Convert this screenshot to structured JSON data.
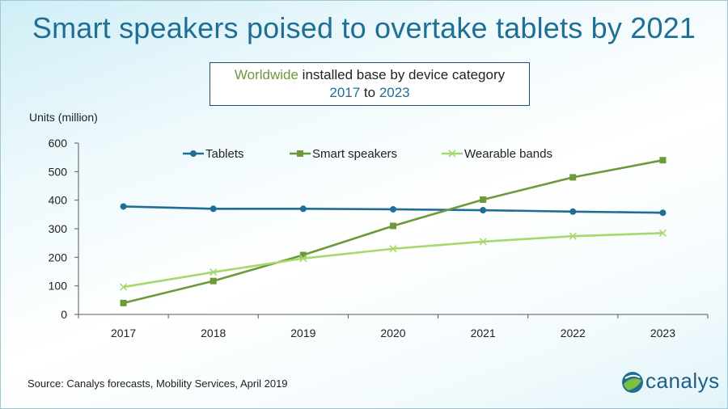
{
  "slide": {
    "title": "Smart speakers poised to overtake tablets by 2021",
    "subtitle_part1": "Worldwide",
    "subtitle_part2": " installed base by device category",
    "subtitle_year_start": "2017",
    "subtitle_to": " to ",
    "subtitle_year_end": "2023",
    "source": "Source:  Canalys forecasts, Mobility Services, April 2019",
    "logo_text": "canalys"
  },
  "colors": {
    "tablets": "#1f6f94",
    "smart_speakers": "#6b9a3b",
    "wearable_bands": "#a6d86e",
    "axis": "#595959"
  },
  "chart_data": {
    "type": "line",
    "title": "",
    "xlabel": "",
    "ylabel": "Units (million)",
    "categories": [
      "2017",
      "2018",
      "2019",
      "2020",
      "2021",
      "2022",
      "2023"
    ],
    "ylim": [
      0,
      600
    ],
    "yticks": [
      0,
      100,
      200,
      300,
      400,
      500,
      600
    ],
    "legend_position": "top",
    "series": [
      {
        "name": "Tablets",
        "marker": "circle",
        "values": [
          378,
          370,
          370,
          368,
          365,
          360,
          356
        ]
      },
      {
        "name": "Smart speakers",
        "marker": "square",
        "values": [
          40,
          117,
          208,
          310,
          402,
          480,
          540
        ]
      },
      {
        "name": "Wearable bands",
        "marker": "x",
        "values": [
          96,
          148,
          196,
          230,
          255,
          274,
          285
        ]
      }
    ]
  }
}
